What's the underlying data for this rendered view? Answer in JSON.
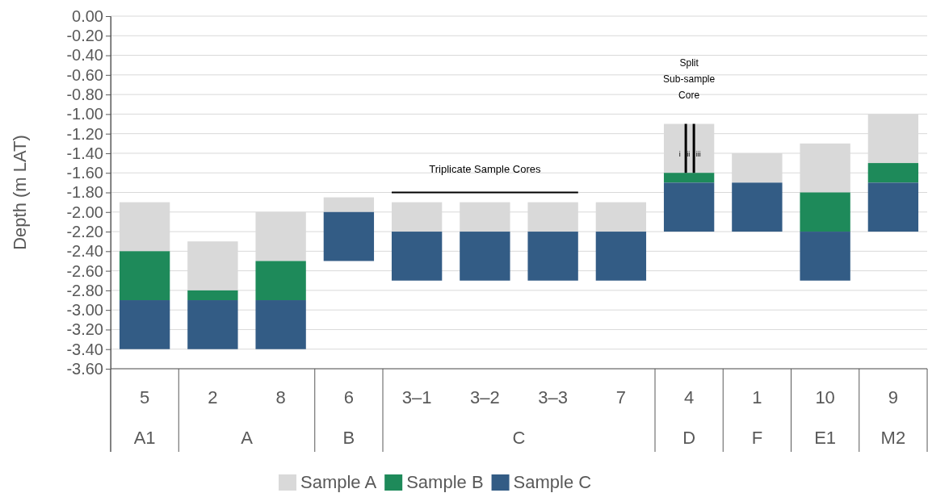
{
  "chart_data": {
    "type": "bar",
    "ylabel": "Depth (m LAT)",
    "categories": [
      "5",
      "2",
      "8",
      "6",
      "3–1",
      "3–2",
      "3–3",
      "7",
      "4",
      "1",
      "10",
      "9"
    ],
    "series": [
      {
        "name": "Sample A",
        "color": "#d9d9d9",
        "base": [
          -1.9,
          -2.3,
          -2.0,
          -1.85,
          -1.9,
          -1.9,
          -1.9,
          -1.9,
          -1.1,
          -1.4,
          -1.3,
          -1.0
        ],
        "values": [
          -0.5,
          -0.5,
          -0.5,
          -0.15,
          -0.3,
          -0.3,
          -0.3,
          -0.3,
          -0.5,
          -0.3,
          -0.5,
          -0.5
        ]
      },
      {
        "name": "Sample B",
        "color": "#1e8a5a",
        "base": [
          -2.4,
          -2.8,
          -2.5,
          null,
          null,
          null,
          null,
          null,
          -1.6,
          null,
          -1.8,
          -1.5
        ],
        "values": [
          -0.5,
          -0.1,
          -0.4,
          null,
          null,
          null,
          null,
          null,
          -0.1,
          null,
          -0.4,
          -0.2
        ]
      },
      {
        "name": "Sample C",
        "color": "#335c85",
        "base": [
          -2.9,
          -2.9,
          -2.9,
          -2.0,
          -2.2,
          -2.2,
          -2.2,
          -2.2,
          -1.7,
          -1.7,
          -2.2,
          -1.7
        ],
        "values": [
          -0.5,
          -0.5,
          -0.5,
          -0.5,
          -0.5,
          -0.5,
          -0.5,
          -0.5,
          -0.5,
          -0.5,
          -0.5,
          -0.5
        ]
      }
    ],
    "ylim": [
      -3.6,
      0
    ],
    "yticks": [
      {
        "value": 0,
        "label": "0.00"
      },
      {
        "value": -0.2,
        "label": "-0.20"
      },
      {
        "value": -0.4,
        "label": "-0.40"
      },
      {
        "value": -0.6,
        "label": "-0.60"
      },
      {
        "value": -0.8,
        "label": "-0.80"
      },
      {
        "value": -1.0,
        "label": "-1.00"
      },
      {
        "value": -1.2,
        "label": "-1.20"
      },
      {
        "value": -1.4,
        "label": "-1.40"
      },
      {
        "value": -1.6,
        "label": "-1.60"
      },
      {
        "value": -1.8,
        "label": "-1.80"
      },
      {
        "value": -2.0,
        "label": "-2.00"
      },
      {
        "value": -2.2,
        "label": "-2.20"
      },
      {
        "value": -2.4,
        "label": "-2.40"
      },
      {
        "value": -2.6,
        "label": "-2.60"
      },
      {
        "value": -2.8,
        "label": "-2.80"
      },
      {
        "value": -3.0,
        "label": "-3.00"
      },
      {
        "value": -3.2,
        "label": "-3.20"
      },
      {
        "value": -3.4,
        "label": "-3.40"
      },
      {
        "value": -3.6,
        "label": "-3.60"
      }
    ],
    "grid": "y",
    "legend": "bottom",
    "annotations": [
      "A1",
      "A",
      "B",
      "C",
      "D",
      "F",
      "E1",
      "M2",
      "Triplicate Sample Cores",
      "Split Sub-sample Core",
      "i ii iii"
    ]
  }
}
